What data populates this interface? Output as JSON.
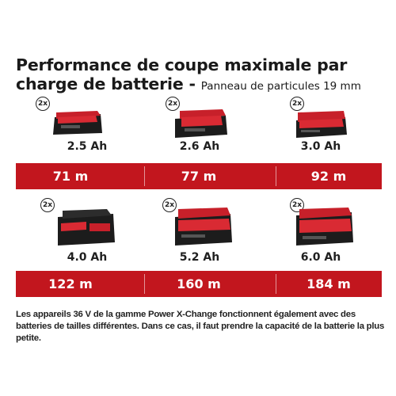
{
  "title": {
    "main": "Performance de coupe maximale par charge de batterie - ",
    "sub": "Panneau de particules 19 mm"
  },
  "badge_text": "2x",
  "batteries": [
    {
      "capacity": "2.5 Ah",
      "cut": "71 m",
      "icon": "battery-2-5ah-icon"
    },
    {
      "capacity": "2.6 Ah",
      "cut": "77 m",
      "icon": "battery-2-6ah-icon"
    },
    {
      "capacity": "3.0 Ah",
      "cut": "92 m",
      "icon": "battery-3-0ah-icon"
    },
    {
      "capacity": "4.0 Ah",
      "cut": "122 m",
      "icon": "battery-4-0ah-icon"
    },
    {
      "capacity": "5.2 Ah",
      "cut": "160 m",
      "icon": "battery-5-2ah-icon"
    },
    {
      "capacity": "6.0 Ah",
      "cut": "184 m",
      "icon": "battery-6-0ah-icon"
    }
  ],
  "note": "Les appareils 36 V de la gamme Power X-Change fonctionnent également avec des batteries de tailles différentes. Dans ce cas, il faut prendre la capacité de la batterie la plus petite.",
  "colors": {
    "band": "#c2161e",
    "battery_red": "#d0202a",
    "battery_black": "#222222"
  }
}
